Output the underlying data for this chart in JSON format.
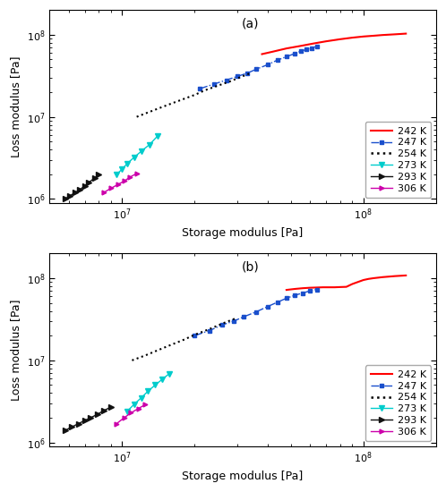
{
  "title_a": "(a)",
  "title_b": "(b)",
  "xlabel": "Storage modulus [Pa]",
  "ylabel": "Loss modulus [Pa]",
  "xlim_log": [
    6.5,
    8.3
  ],
  "ylim_log": [
    6.0,
    8.3
  ],
  "series": {
    "242K": {
      "color": "#ff0000",
      "linestyle": "-",
      "marker": null,
      "linewidth": 1.5
    },
    "247K": {
      "color": "#1a4fcc",
      "linestyle": "-.",
      "marker": "s",
      "markersize": 3.0,
      "linewidth": 1.0
    },
    "254K": {
      "color": "#000000",
      "linestyle": ":",
      "marker": null,
      "linewidth": 1.5
    },
    "273K": {
      "color": "#00cccc",
      "linestyle": "-",
      "marker": "v",
      "markersize": 4,
      "linewidth": 1.0
    },
    "293K": {
      "color": "#111111",
      "linestyle": "-",
      "marker": ">",
      "markersize": 4,
      "linewidth": 1.0
    },
    "306K": {
      "color": "#cc00aa",
      "linestyle": "-",
      "marker": ">",
      "markersize": 3.5,
      "linewidth": 1.0
    }
  },
  "legend_labels": [
    "242 K",
    "247 K",
    "254 K",
    "273 K",
    "293 K",
    "306 K"
  ],
  "panel_a": {
    "242K_x": [
      38000000.0,
      42000000.0,
      48000000.0,
      55000000.0,
      62000000.0,
      70000000.0,
      80000000.0,
      90000000.0,
      100000000.0,
      110000000.0,
      120000000.0,
      135000000.0,
      150000000.0
    ],
    "242K_y": [
      58000000.0,
      62000000.0,
      68000000.0,
      73000000.0,
      78000000.0,
      83000000.0,
      88000000.0,
      92000000.0,
      95000000.0,
      97000000.0,
      99000000.0,
      101000000.0,
      103000000.0
    ],
    "247K_x": [
      21000000.0,
      24000000.0,
      27000000.0,
      30000000.0,
      33000000.0,
      36000000.0,
      40000000.0,
      44000000.0,
      48000000.0,
      52000000.0,
      55000000.0,
      58000000.0,
      61000000.0,
      64000000.0
    ],
    "247K_y": [
      22000000.0,
      25000000.0,
      28000000.0,
      31000000.0,
      34000000.0,
      38000000.0,
      43000000.0,
      49000000.0,
      54000000.0,
      59000000.0,
      63000000.0,
      66000000.0,
      69000000.0,
      72000000.0
    ],
    "254K_x": [
      11500000.0,
      13000000.0,
      14500000.0,
      16000000.0,
      18000000.0,
      20000000.0,
      22000000.0,
      25000000.0,
      28000000.0,
      31000000.0,
      34000000.0
    ],
    "254K_y": [
      10000000.0,
      11500000.0,
      13000000.0,
      14500000.0,
      16500000.0,
      18500000.0,
      21000000.0,
      24000000.0,
      27000000.0,
      30500000.0,
      34000000.0
    ],
    "273K_x": [
      9500000.0,
      10000000.0,
      10500000.0,
      11200000.0,
      12000000.0,
      13000000.0,
      14000000.0
    ],
    "273K_y": [
      2000000.0,
      2300000.0,
      2700000.0,
      3200000.0,
      3800000.0,
      4600000.0,
      5800000.0
    ],
    "293K_x": [
      5800000.0,
      6100000.0,
      6400000.0,
      6700000.0,
      7000000.0,
      7300000.0,
      7700000.0,
      8000000.0
    ],
    "293K_y": [
      1000000.0,
      1100000.0,
      1200000.0,
      1300000.0,
      1450000.0,
      1600000.0,
      1800000.0,
      2000000.0
    ],
    "306K_x": [
      8400000.0,
      9000000.0,
      9600000.0,
      10200000.0,
      10800000.0,
      11500000.0
    ],
    "306K_y": [
      1200000.0,
      1350000.0,
      1500000.0,
      1650000.0,
      1850000.0,
      2050000.0
    ]
  },
  "panel_b": {
    "242K_x": [
      48000000.0,
      52000000.0,
      56000000.0,
      60000000.0,
      64000000.0,
      68000000.0,
      72000000.0,
      76000000.0,
      80000000.0,
      85000000.0,
      90000000.0,
      95000000.0,
      100000000.0,
      105000000.0,
      110000000.0,
      120000000.0,
      135000000.0,
      150000000.0
    ],
    "242K_y": [
      72000000.0,
      74000000.0,
      75500000.0,
      76500000.0,
      77000000.0,
      77500000.0,
      77500000.0,
      77500000.0,
      78000000.0,
      78500000.0,
      85000000.0,
      90000000.0,
      95000000.0,
      98000000.0,
      100000000.0,
      103000000.0,
      106000000.0,
      108000000.0
    ],
    "247K_x": [
      20000000.0,
      23000000.0,
      26000000.0,
      29000000.0,
      32000000.0,
      36000000.0,
      40000000.0,
      44000000.0,
      48000000.0,
      52000000.0,
      56000000.0,
      60000000.0,
      64000000.0
    ],
    "247K_y": [
      20000000.0,
      23000000.0,
      27000000.0,
      30000000.0,
      34000000.0,
      39000000.0,
      45000000.0,
      51000000.0,
      57000000.0,
      62000000.0,
      66000000.0,
      70000000.0,
      73000000.0
    ],
    "254K_x": [
      11000000.0,
      12500000.0,
      14000000.0,
      16000000.0,
      18000000.0,
      20000000.0,
      23000000.0,
      26000000.0,
      30000000.0
    ],
    "254K_y": [
      10000000.0,
      11500000.0,
      13200000.0,
      15500000.0,
      17800000.0,
      20500000.0,
      24000000.0,
      28000000.0,
      33000000.0
    ],
    "273K_x": [
      10500000.0,
      11200000.0,
      12000000.0,
      12800000.0,
      13700000.0,
      14700000.0,
      15700000.0
    ],
    "273K_y": [
      2400000.0,
      2900000.0,
      3500000.0,
      4200000.0,
      5000000.0,
      5900000.0,
      6900000.0
    ],
    "293K_x": [
      5800000.0,
      6200000.0,
      6600000.0,
      7000000.0,
      7400000.0,
      7900000.0,
      8400000.0,
      9000000.0
    ],
    "293K_y": [
      1400000.0,
      1550000.0,
      1700000.0,
      1850000.0,
      2000000.0,
      2200000.0,
      2450000.0,
      2700000.0
    ],
    "306K_x": [
      9500000.0,
      10200000.0,
      10900000.0,
      11700000.0,
      12500000.0
    ],
    "306K_y": [
      1700000.0,
      2000000.0,
      2300000.0,
      2600000.0,
      2900000.0
    ]
  }
}
